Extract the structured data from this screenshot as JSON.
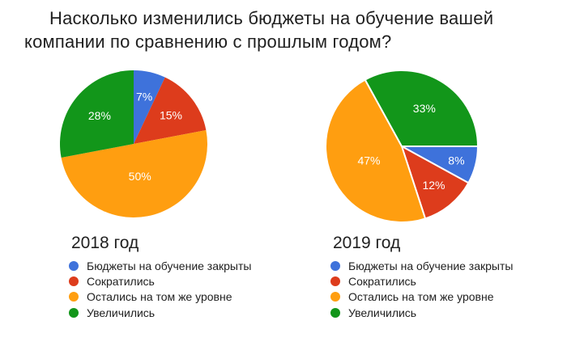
{
  "page": {
    "type": "survey-results-slide",
    "background": "#ffffff"
  },
  "title": {
    "full": "Насколько изменились бюджеты на обучение вашей компании по сравнению с прошлым годом?",
    "line1": "Насколько изменились бюджеты на обучение вашей",
    "line2": "компании по сравнению с прошлым годом?"
  },
  "palette": {
    "blue": "#3E72DB",
    "red": "#DD3C1C",
    "orange": "#FF9E10",
    "green": "#12961A",
    "label_text": "#ffffff",
    "title_text": "#1f1f1f",
    "legend_text": "#212121"
  },
  "chart_data": [
    {
      "type": "pie",
      "title": "2018 год",
      "labels": [
        "Бюджеты на обучение закрыты",
        "Сократились",
        "Остались на том же уровне",
        "Увеличились"
      ],
      "values": [
        7,
        15,
        50,
        28
      ],
      "percent_labels": [
        "7%",
        "15%",
        "50%",
        "28%"
      ],
      "colors": [
        "#3E72DB",
        "#DD3C1C",
        "#FF9E10",
        "#12961A"
      ],
      "start_angle_deg": 0,
      "slice_borders": false,
      "label_radius_factors": [
        0.66,
        0.64,
        0.45,
        0.6
      ],
      "legend_position": "bottom"
    },
    {
      "type": "pie",
      "title": "2019 год",
      "labels": [
        "Бюджеты на обучение закрыты",
        "Сократились",
        "Остались на том же уровне",
        "Увеличились"
      ],
      "values": [
        8,
        12,
        47,
        33
      ],
      "percent_labels": [
        "8%",
        "12%",
        "47%",
        "33%"
      ],
      "colors": [
        "#3E72DB",
        "#DD3C1C",
        "#FF9E10",
        "#12961A"
      ],
      "start_angle_deg": 90,
      "slice_borders": true,
      "label_radius_factors": [
        0.74,
        0.66,
        0.47,
        0.58
      ],
      "legend_position": "bottom"
    }
  ]
}
